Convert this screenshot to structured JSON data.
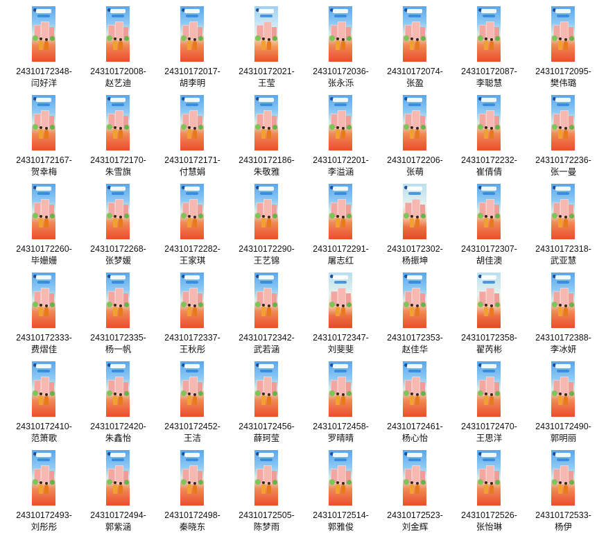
{
  "files": [
    {
      "id": "24310172348-",
      "name": "闫好洋"
    },
    {
      "id": "24310172008-",
      "name": "赵艺迪"
    },
    {
      "id": "24310172017-",
      "name": "胡李明"
    },
    {
      "id": "24310172021-",
      "name": "王莹"
    },
    {
      "id": "24310172036-",
      "name": "张永泺"
    },
    {
      "id": "24310172074-",
      "name": "张盈"
    },
    {
      "id": "24310172087-",
      "name": "李聪慧"
    },
    {
      "id": "24310172095-",
      "name": "樊伟璐"
    },
    {
      "id": "24310172167-",
      "name": "贺幸梅"
    },
    {
      "id": "24310172170-",
      "name": "朱雪旗"
    },
    {
      "id": "24310172171-",
      "name": "付慧娟"
    },
    {
      "id": "24310172186-",
      "name": "朱敬雅"
    },
    {
      "id": "24310172201-",
      "name": "李溢涵"
    },
    {
      "id": "24310172206-",
      "name": "张萌"
    },
    {
      "id": "24310172232-",
      "name": "崔倩倩"
    },
    {
      "id": "24310172236-",
      "name": "张一曼"
    },
    {
      "id": "24310172260-",
      "name": "毕姗姗"
    },
    {
      "id": "24310172268-",
      "name": "张梦媛"
    },
    {
      "id": "24310172282-",
      "name": "王家琪"
    },
    {
      "id": "24310172290-",
      "name": "王艺锦"
    },
    {
      "id": "24310172291-",
      "name": "屠志红"
    },
    {
      "id": "24310172302-",
      "name": "杨振坤"
    },
    {
      "id": "24310172307-",
      "name": "胡佳澳"
    },
    {
      "id": "24310172318-",
      "name": "武亚慧"
    },
    {
      "id": "24310172333-",
      "name": "费熠佳"
    },
    {
      "id": "24310172335-",
      "name": "杨一帆"
    },
    {
      "id": "24310172337-",
      "name": "王秋彤"
    },
    {
      "id": "24310172342-",
      "name": "武若涵"
    },
    {
      "id": "24310172347-",
      "name": "刘斐斐"
    },
    {
      "id": "24310172353-",
      "name": "赵佳华"
    },
    {
      "id": "24310172358-",
      "name": "翟芮彬"
    },
    {
      "id": "24310172388-",
      "name": "李冰妍"
    },
    {
      "id": "24310172410-",
      "name": "范箫歌"
    },
    {
      "id": "24310172420-",
      "name": "朱鑫怡"
    },
    {
      "id": "24310172452-",
      "name": "王洁"
    },
    {
      "id": "24310172456-",
      "name": "薛珂莹"
    },
    {
      "id": "24310172458-",
      "name": "罗晴晴"
    },
    {
      "id": "24310172461-",
      "name": "杨心怡"
    },
    {
      "id": "24310172470-",
      "name": "王思洋"
    },
    {
      "id": "24310172490-",
      "name": "郭明丽"
    },
    {
      "id": "24310172493-",
      "name": "刘彤彤"
    },
    {
      "id": "24310172494-",
      "name": "郭紫涵"
    },
    {
      "id": "24310172498-",
      "name": "秦晓东"
    },
    {
      "id": "24310172505-",
      "name": "陈梦雨"
    },
    {
      "id": "24310172514-",
      "name": "郭雅俊"
    },
    {
      "id": "24310172523-",
      "name": "刘金辉"
    },
    {
      "id": "24310172526-",
      "name": "张怡琳"
    },
    {
      "id": "24310172533-",
      "name": "杨伊"
    }
  ],
  "colors": {
    "sky_top": "#5aa7ea",
    "building_pink": "#f2a7a2",
    "ground_orange": "#ea4d2a",
    "text": "#111111"
  }
}
